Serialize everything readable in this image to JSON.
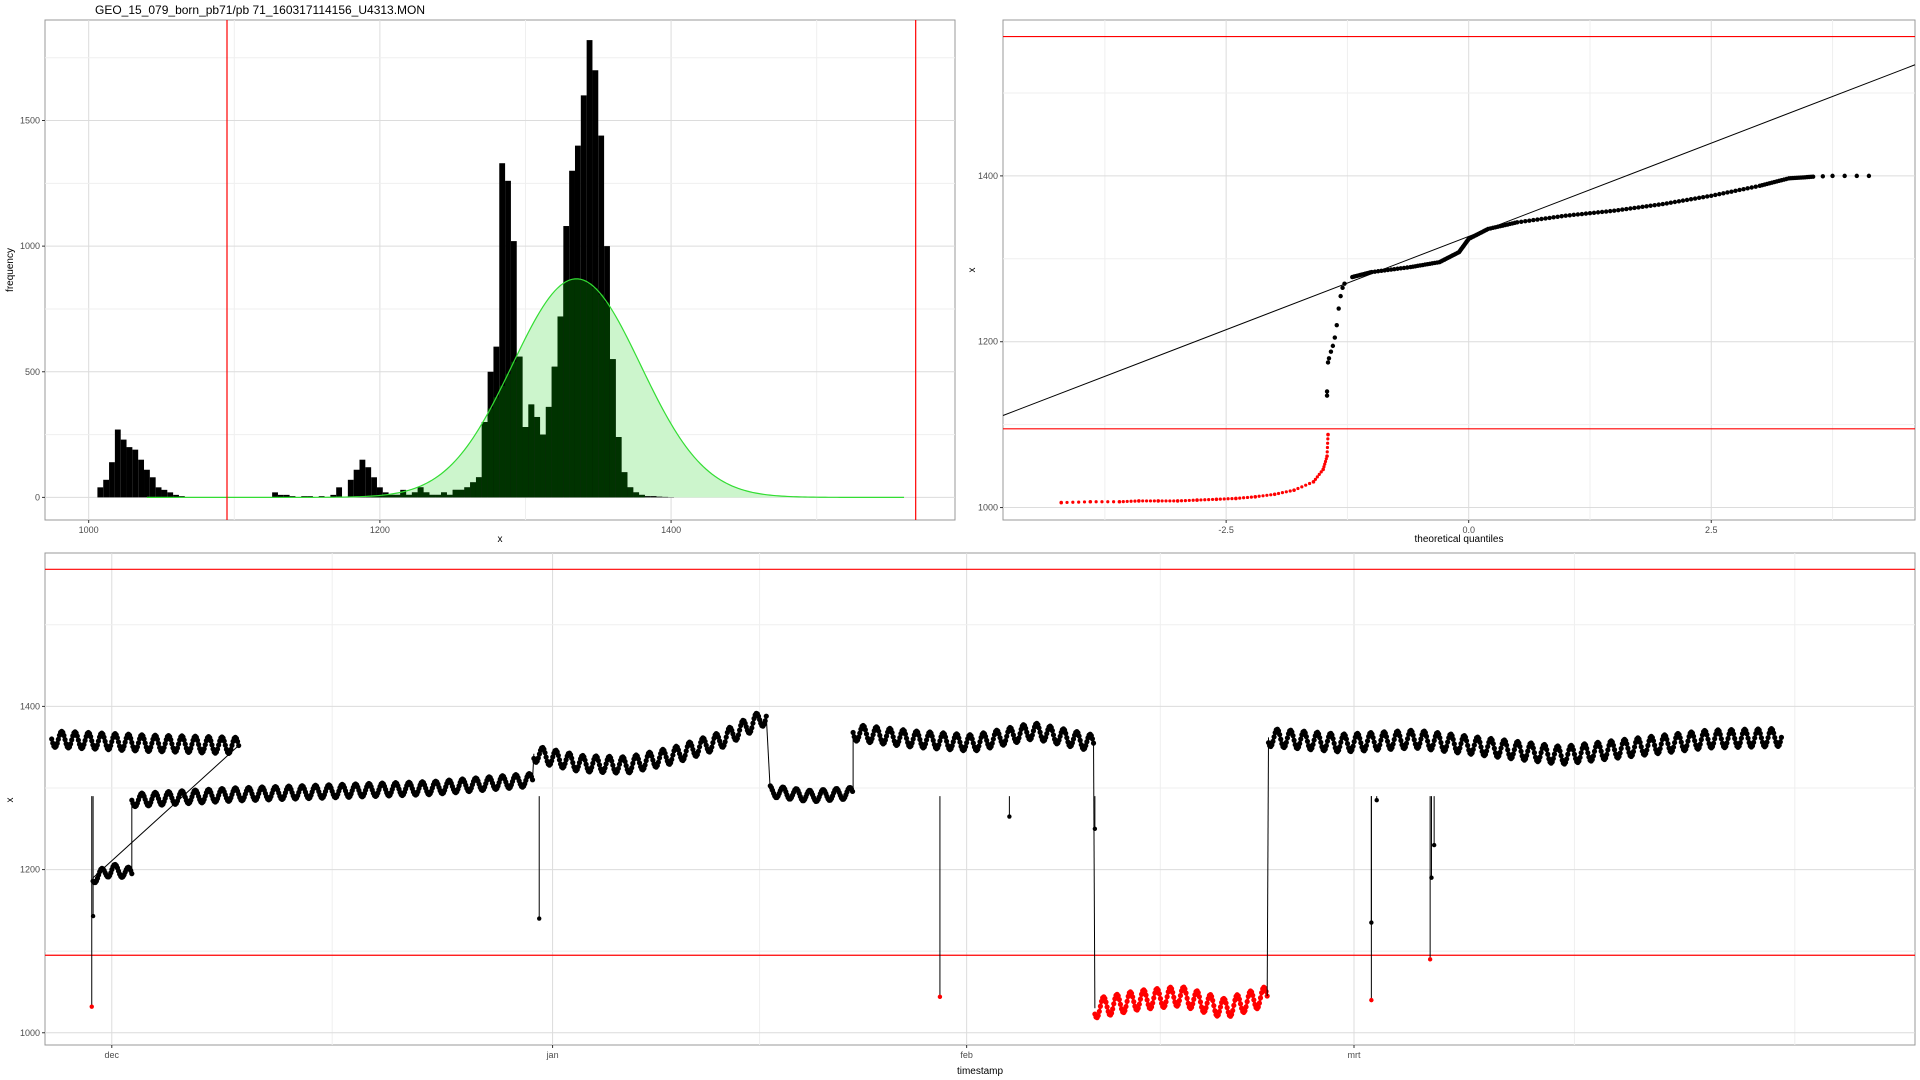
{
  "title": "GEO_15_079_born_pb71/pb 71_160317114156_U4313.MON",
  "colors": {
    "threshold": "#ff0000",
    "normal_fit_fill": "#ccf5cc",
    "normal_fit_line": "#33dd33",
    "overlap": "#003300",
    "points": "#000000",
    "outliers": "#ff0000"
  },
  "chart_data": [
    {
      "type": "bar",
      "name": "histogram",
      "xlabel": "x",
      "ylabel": "frequency",
      "xlim": [
        970,
        1595
      ],
      "ylim": [
        -90,
        1900
      ],
      "x_ticks": [
        1000,
        1200,
        1400
      ],
      "y_ticks": [
        0,
        500,
        1000,
        1500
      ],
      "grid": true,
      "thresholds_x": [
        1095,
        1568
      ],
      "bin_width": 4,
      "bins_x": [
        1006,
        1010,
        1014,
        1018,
        1022,
        1026,
        1030,
        1034,
        1038,
        1042,
        1046,
        1050,
        1054,
        1058,
        1062,
        1126,
        1130,
        1134,
        1138,
        1146,
        1150,
        1158,
        1166,
        1170,
        1178,
        1182,
        1186,
        1190,
        1194,
        1198,
        1202,
        1206,
        1210,
        1214,
        1218,
        1222,
        1226,
        1230,
        1234,
        1238,
        1242,
        1246,
        1250,
        1254,
        1258,
        1262,
        1266,
        1270,
        1274,
        1278,
        1282,
        1286,
        1290,
        1294,
        1298,
        1302,
        1306,
        1310,
        1314,
        1318,
        1322,
        1326,
        1330,
        1334,
        1338,
        1342,
        1346,
        1350,
        1354,
        1358,
        1362,
        1366,
        1370,
        1374,
        1378,
        1382,
        1386,
        1390,
        1394,
        1398
      ],
      "frequencies": [
        40,
        70,
        140,
        270,
        230,
        200,
        190,
        150,
        110,
        80,
        40,
        30,
        20,
        10,
        5,
        20,
        10,
        10,
        5,
        5,
        5,
        5,
        10,
        40,
        70,
        110,
        150,
        120,
        80,
        40,
        20,
        10,
        10,
        30,
        10,
        20,
        40,
        20,
        10,
        10,
        20,
        10,
        30,
        30,
        40,
        60,
        80,
        300,
        500,
        600,
        1330,
        1260,
        1020,
        560,
        280,
        370,
        320,
        250,
        360,
        520,
        720,
        1080,
        1300,
        1400,
        1600,
        1820,
        1700,
        1440,
        1000,
        550,
        240,
        100,
        40,
        20,
        10,
        5,
        5,
        3,
        2,
        1
      ],
      "normal_fit": {
        "mean": 1335,
        "sd": 44,
        "peak": 870
      }
    },
    {
      "type": "scatter",
      "name": "qq-plot",
      "xlabel": "theoretical quantiles",
      "ylabel": "x",
      "xlim": [
        -4.8,
        4.6
      ],
      "ylim": [
        985,
        1588
      ],
      "x_ticks": [
        -2.5,
        0.0,
        2.5
      ],
      "x_tick_labels": [
        "-2.5",
        "0.0",
        "2.5"
      ],
      "y_ticks": [
        1000,
        1200,
        1400
      ],
      "grid": true,
      "thresholds_y": [
        1095,
        1568
      ],
      "reference_line": {
        "intercept": 1327,
        "slope": 45
      },
      "quantile_curve": [
        [
          -1.2,
          1278
        ],
        [
          -1.0,
          1284
        ],
        [
          -0.6,
          1290
        ],
        [
          -0.3,
          1296
        ],
        [
          -0.1,
          1308
        ],
        [
          0.0,
          1324
        ],
        [
          0.2,
          1336
        ],
        [
          0.5,
          1344
        ],
        [
          1.0,
          1352
        ],
        [
          1.5,
          1358
        ],
        [
          2.0,
          1366
        ],
        [
          2.5,
          1376
        ],
        [
          3.0,
          1388
        ],
        [
          3.3,
          1397
        ],
        [
          3.55,
          1399
        ],
        [
          3.75,
          1400
        ],
        [
          4.0,
          1400
        ],
        [
          4.25,
          1400
        ]
      ],
      "outlier_points": [
        [
          -4.2,
          1006
        ],
        [
          -3.9,
          1007
        ],
        [
          -3.6,
          1007
        ],
        [
          -3.4,
          1008
        ],
        [
          -3.2,
          1008
        ],
        [
          -3.0,
          1008
        ],
        [
          -2.8,
          1009
        ],
        [
          -2.6,
          1010
        ],
        [
          -2.4,
          1011
        ],
        [
          -2.2,
          1013
        ],
        [
          -2.0,
          1016
        ],
        [
          -1.8,
          1021
        ],
        [
          -1.6,
          1031
        ],
        [
          -1.5,
          1046
        ],
        [
          -1.46,
          1062
        ],
        [
          -1.45,
          1088
        ]
      ]
    },
    {
      "type": "line",
      "name": "time-series",
      "xlabel": "timestamp",
      "ylabel": "x",
      "xlim": [
        -5,
        135
      ],
      "ylim": [
        985,
        1588
      ],
      "x_ticks": [
        0,
        33,
        64,
        93
      ],
      "x_tick_labels": [
        "dec",
        "jan",
        "feb",
        "mrt"
      ],
      "y_ticks": [
        1000,
        1200,
        1400
      ],
      "grid": true,
      "thresholds_y": [
        1095,
        1568
      ],
      "x_unit": "days since 1 Dec",
      "segments": [
        {
          "x": [
            -4.5,
            9.5
          ],
          "base": [
            1360,
            1355,
            1352
          ],
          "amp": 10
        },
        {
          "x": [
            -1.4,
            1.5
          ],
          "base": [
            1190,
            1200,
            1195
          ],
          "amp": 7
        },
        {
          "x": [
            1.5,
            31.5
          ],
          "base": [
            1285,
            1292,
            1296,
            1300,
            1310
          ],
          "amp": 8
        },
        {
          "x": [
            31.6,
            49.0
          ],
          "base": [
            1342,
            1330,
            1328,
            1340,
            1358,
            1388
          ],
          "amp": 10
        },
        {
          "x": [
            49.3,
            55.5
          ],
          "base": [
            1296,
            1290,
            1294
          ],
          "amp": 7
        },
        {
          "x": [
            55.5,
            73.5
          ],
          "base": [
            1368,
            1360,
            1355,
            1370,
            1355
          ],
          "amp": 10
        },
        {
          "x": [
            73.6,
            86.5
          ],
          "base": [
            1030,
            1040,
            1045,
            1030,
            1045
          ],
          "amp": 12,
          "outlier": true
        },
        {
          "x": [
            86.6,
            125.0
          ],
          "base": [
            1362,
            1355,
            1360,
            1350,
            1340,
            1350,
            1360,
            1362
          ],
          "amp": 11
        }
      ],
      "spikes": [
        [
          -1.5,
          1032,
          true
        ],
        [
          -1.4,
          1143,
          false
        ],
        [
          32.0,
          1140,
          false
        ],
        [
          62.0,
          1044,
          true
        ],
        [
          67.2,
          1265,
          false
        ],
        [
          73.6,
          1250,
          false
        ],
        [
          94.3,
          1135,
          false
        ],
        [
          94.3,
          1040,
          true
        ],
        [
          94.7,
          1285,
          false
        ],
        [
          98.7,
          1090,
          true
        ],
        [
          98.8,
          1190,
          false
        ],
        [
          99.0,
          1230,
          false
        ]
      ]
    }
  ]
}
